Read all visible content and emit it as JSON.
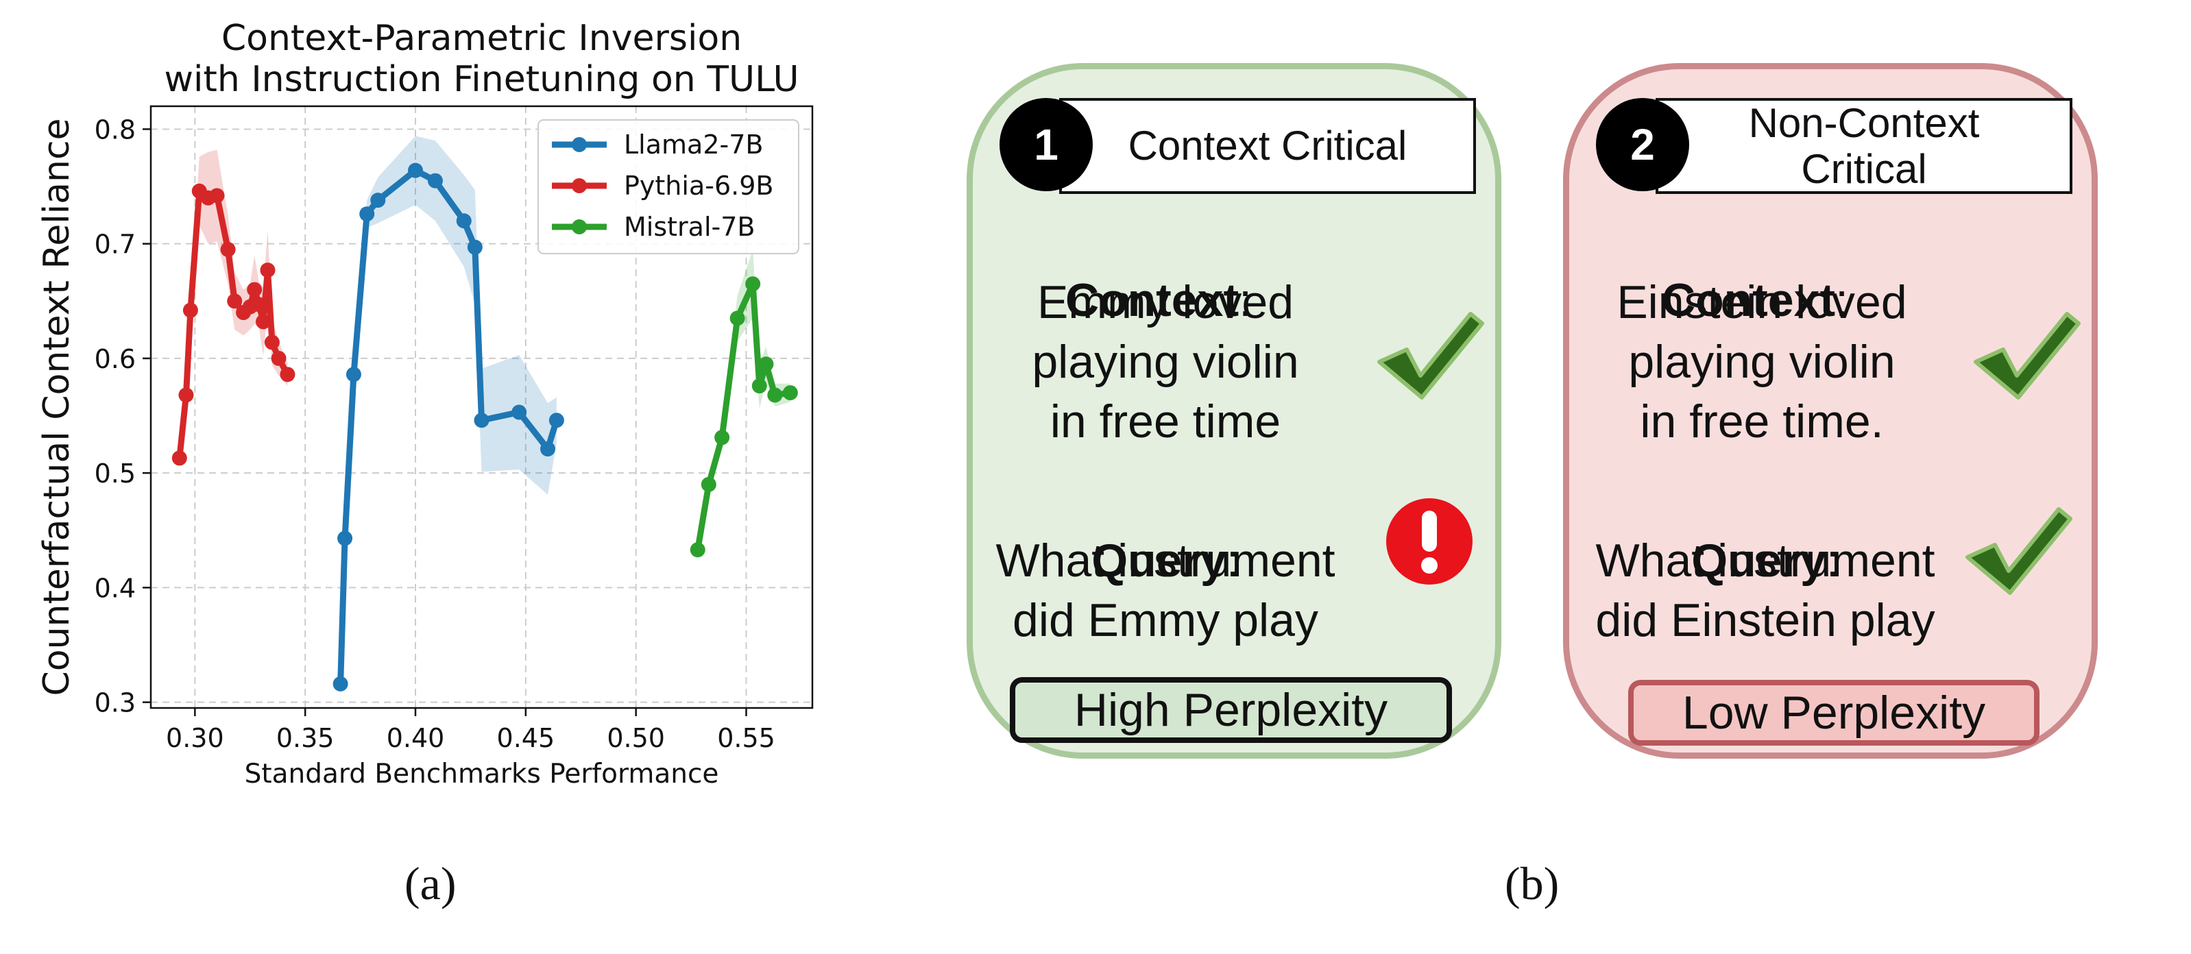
{
  "chart_data": {
    "type": "line",
    "title": "Context-Parametric Inversion\nwith Instruction Finetuning on TULU",
    "xlabel": "Standard Benchmarks Performance",
    "ylabel": "Counterfactual Context Reliance",
    "xlim": [
      0.28,
      0.58
    ],
    "ylim": [
      0.295,
      0.82
    ],
    "xticks": [
      0.3,
      0.35,
      0.4,
      0.45,
      0.5,
      0.55
    ],
    "yticks": [
      0.3,
      0.4,
      0.5,
      0.6,
      0.7,
      0.8
    ],
    "xtick_labels": [
      "0.30",
      "0.35",
      "0.40",
      "0.45",
      "0.50",
      "0.55"
    ],
    "ytick_labels": [
      "0.3",
      "0.4",
      "0.5",
      "0.6",
      "0.7",
      "0.8"
    ],
    "grid": true,
    "legend_position": "top-right",
    "series": [
      {
        "name": "Llama2-7B",
        "color": "#1f77b4",
        "x": [
          0.366,
          0.368,
          0.372,
          0.378,
          0.383,
          0.4,
          0.409,
          0.422,
          0.427,
          0.43,
          0.447,
          0.46,
          0.464
        ],
        "y": [
          0.316,
          0.443,
          0.586,
          0.726,
          0.738,
          0.764,
          0.755,
          0.72,
          0.697,
          0.546,
          0.553,
          0.521,
          0.546
        ],
        "band": [
          0.02,
          0.01,
          0.01,
          0.012,
          0.02,
          0.03,
          0.035,
          0.04,
          0.05,
          0.045,
          0.05,
          0.04,
          0.02
        ]
      },
      {
        "name": "Pythia-6.9B",
        "color": "#d62728",
        "x": [
          0.293,
          0.296,
          0.298,
          0.302,
          0.306,
          0.31,
          0.315,
          0.318,
          0.322,
          0.325,
          0.327,
          0.329,
          0.331,
          0.333,
          0.335,
          0.338,
          0.342
        ],
        "y": [
          0.513,
          0.568,
          0.642,
          0.746,
          0.74,
          0.742,
          0.695,
          0.65,
          0.64,
          0.645,
          0.66,
          0.647,
          0.632,
          0.677,
          0.614,
          0.6,
          0.586
        ],
        "band": [
          0.005,
          0.008,
          0.015,
          0.03,
          0.04,
          0.04,
          0.03,
          0.025,
          0.02,
          0.02,
          0.03,
          0.02,
          0.03,
          0.035,
          0.02,
          0.015,
          0.01
        ]
      },
      {
        "name": "Mistral-7B",
        "color": "#2ca02c",
        "x": [
          0.528,
          0.533,
          0.539,
          0.546,
          0.553,
          0.556,
          0.559,
          0.563,
          0.57
        ],
        "y": [
          0.433,
          0.49,
          0.531,
          0.635,
          0.665,
          0.576,
          0.595,
          0.568,
          0.57
        ],
        "band": [
          0.005,
          0.008,
          0.01,
          0.02,
          0.03,
          0.02,
          0.015,
          0.01,
          0.008
        ]
      }
    ]
  },
  "captions": {
    "a": "(a)",
    "b": "(b)"
  },
  "panel_b": {
    "left_card": {
      "number": "1",
      "title": "Context Critical",
      "context_label": "Context",
      "context_text": "Emmy loved\nplaying violin\nin free time",
      "query_label": "Query",
      "query_text": "What instrument\ndid Emmy play",
      "result": "High Perplexity",
      "context_icon": "checkmark-icon",
      "query_icon": "exclamation-icon",
      "fill": "#e4efe0",
      "border": "#a9c99a"
    },
    "right_card": {
      "number": "2",
      "title": "Non-Context\nCritical",
      "context_label": "Context",
      "context_text": "Einstein loved\nplaying violin\nin free time.",
      "query_label": "Query",
      "query_text": "What instrument\ndid Einstein play",
      "result": "Low Perplexity",
      "context_icon": "checkmark-icon",
      "query_icon": "checkmark-icon",
      "fill": "#f7dedd",
      "border": "#cc8a8c"
    },
    "colon": ":"
  }
}
